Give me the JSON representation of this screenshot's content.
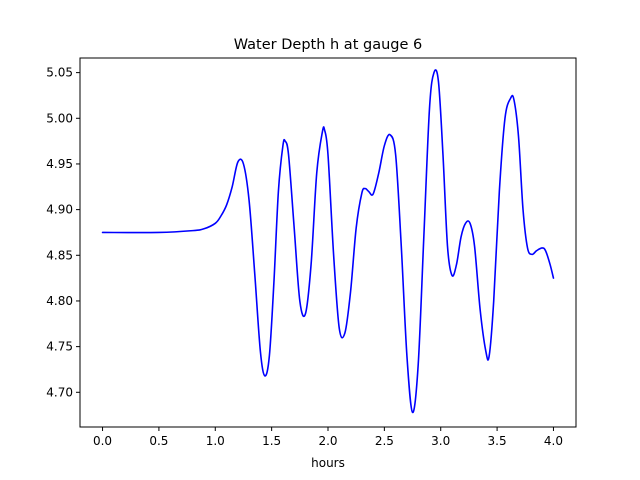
{
  "chart_data": {
    "type": "line",
    "title": "Water Depth h at gauge 6",
    "xlabel": "hours",
    "ylabel": "",
    "xlim": [
      -0.2,
      4.2
    ],
    "ylim": [
      4.662,
      5.066
    ],
    "xticks": [
      0.0,
      0.5,
      1.0,
      1.5,
      2.0,
      2.5,
      3.0,
      3.5,
      4.0
    ],
    "xtick_labels": [
      "0.0",
      "0.5",
      "1.0",
      "1.5",
      "2.0",
      "2.5",
      "3.0",
      "3.5",
      "4.0"
    ],
    "yticks": [
      4.7,
      4.75,
      4.8,
      4.85,
      4.9,
      4.95,
      5.0,
      5.05
    ],
    "ytick_labels": [
      "4.70",
      "4.75",
      "4.80",
      "4.85",
      "4.90",
      "4.95",
      "5.00",
      "5.05"
    ],
    "grid": false,
    "legend": "none",
    "series": [
      {
        "color": "#0000ff",
        "x": [
          0.0,
          0.5,
          0.8,
          0.9,
          1.0,
          1.05,
          1.1,
          1.15,
          1.2,
          1.25,
          1.3,
          1.35,
          1.4,
          1.44,
          1.48,
          1.52,
          1.56,
          1.6,
          1.62,
          1.65,
          1.7,
          1.75,
          1.8,
          1.85,
          1.9,
          1.95,
          1.97,
          2.0,
          2.05,
          2.1,
          2.15,
          2.2,
          2.25,
          2.3,
          2.33,
          2.36,
          2.4,
          2.45,
          2.5,
          2.55,
          2.6,
          2.65,
          2.7,
          2.75,
          2.8,
          2.85,
          2.9,
          2.94,
          2.98,
          3.02,
          3.06,
          3.1,
          3.14,
          3.18,
          3.22,
          3.26,
          3.3,
          3.35,
          3.4,
          3.43,
          3.47,
          3.52,
          3.57,
          3.62,
          3.65,
          3.69,
          3.73,
          3.77,
          3.81,
          3.85,
          3.9,
          3.93,
          3.97,
          4.0
        ],
        "y": [
          4.875,
          4.875,
          4.877,
          4.879,
          4.885,
          4.893,
          4.905,
          4.925,
          4.952,
          4.95,
          4.91,
          4.83,
          4.745,
          4.718,
          4.74,
          4.82,
          4.92,
          4.97,
          4.975,
          4.96,
          4.88,
          4.8,
          4.786,
          4.84,
          4.94,
          4.985,
          4.987,
          4.96,
          4.85,
          4.77,
          4.765,
          4.81,
          4.88,
          4.918,
          4.923,
          4.92,
          4.917,
          4.94,
          4.97,
          4.982,
          4.96,
          4.86,
          4.74,
          4.678,
          4.73,
          4.87,
          5.01,
          5.05,
          5.04,
          4.96,
          4.86,
          4.828,
          4.84,
          4.87,
          4.885,
          4.885,
          4.86,
          4.79,
          4.745,
          4.74,
          4.8,
          4.92,
          5.0,
          5.022,
          5.02,
          4.98,
          4.9,
          4.858,
          4.851,
          4.855,
          4.858,
          4.855,
          4.84,
          4.825
        ]
      }
    ]
  }
}
